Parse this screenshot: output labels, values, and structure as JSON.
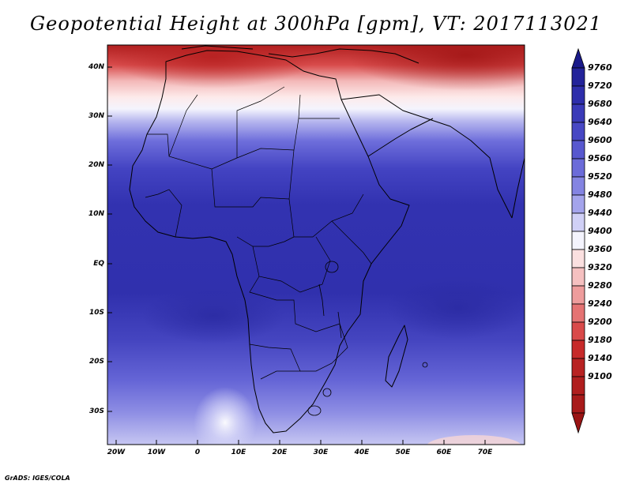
{
  "title": "Geopotential Height at 300hPa [gpm], VT: 2017113021",
  "credit": "GrADS: IGES/COLA",
  "map": {
    "lat_labels": [
      "40N",
      "30N",
      "20N",
      "10N",
      "EQ",
      "10S",
      "20S",
      "30S"
    ],
    "lon_labels": [
      "20W",
      "10W",
      "0",
      "10E",
      "20E",
      "30E",
      "40E",
      "50E",
      "60E",
      "70E"
    ]
  },
  "colorbar": {
    "levels": [
      "9760",
      "9720",
      "9680",
      "9640",
      "9600",
      "9560",
      "9520",
      "9480",
      "9440",
      "9400",
      "9360",
      "9320",
      "9280",
      "9240",
      "9200",
      "9180",
      "9140",
      "9100"
    ],
    "colors": [
      "#1a1a8a",
      "#23239a",
      "#2e2eab",
      "#3a3ab8",
      "#4747c4",
      "#5858cf",
      "#6b6bd9",
      "#8484e2",
      "#a4a4ec",
      "#d0d0f6",
      "#f4f4fd",
      "#fbe0e0",
      "#f5c0c0",
      "#ee9c9c",
      "#e57373",
      "#d94a4a",
      "#c72a2a",
      "#a81a1a"
    ]
  }
}
